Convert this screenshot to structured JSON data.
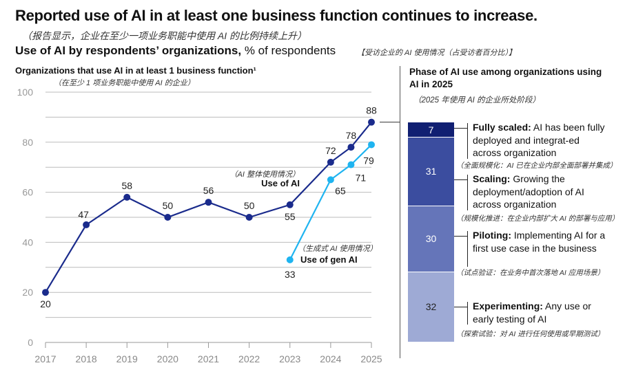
{
  "title": "Reported use of AI in at least one business function continues to increase.",
  "title_cn": "（报告显示，企业在至少一项业务职能中使用 AI 的比例持续上升）",
  "subtitle_bold": "Use of AI by respondents’ organizations,",
  "subtitle_rest": " % of respondents",
  "subtitle_cn": "【受访企业的 AI 使用情况（占受访者百分比）】",
  "chart_data": [
    {
      "type": "line",
      "title": "Organizations that use AI in at least 1 business function¹",
      "title_cn": "（在至少 1 项业务职能中使用 AI 的企业）",
      "ylim": [
        0,
        100
      ],
      "yticks": [
        0,
        20,
        40,
        60,
        80,
        100
      ],
      "grid_step": 10,
      "xticks": [
        "2017",
        "2018",
        "2019",
        "2020",
        "2021",
        "2022",
        "2023",
        "2024",
        "2025"
      ],
      "xlim": [
        2017,
        2025
      ],
      "series": [
        {
          "name": "Use of AI",
          "name_cn": "（AI 整体使用情况）",
          "color": "#1a2b8c",
          "x": [
            2017,
            2018,
            2019,
            2020,
            2021,
            2022,
            2023,
            2024,
            2024.5,
            2025
          ],
          "values": [
            20,
            47,
            58,
            50,
            56,
            50,
            55,
            72,
            78,
            88
          ]
        },
        {
          "name": "Use of gen AI",
          "name_cn": "（生成式 AI 使用情况）",
          "color": "#1fb4f0",
          "x": [
            2023,
            2024,
            2024.5,
            2025
          ],
          "values": [
            33,
            65,
            71,
            79
          ]
        }
      ]
    },
    {
      "type": "bar",
      "stacked": true,
      "title": "Phase of AI use among organizations using AI in 2025",
      "title_cn": "（2025 年使用 AI 的企业所处阶段）",
      "categories": [
        "2025"
      ],
      "segments": [
        {
          "label": "Fully scaled:",
          "desc": " AI has been fully deployed and integrat-ed across organization",
          "cn": "（全面规模化：AI 已在企业内部全面部署并集成）",
          "value": 7,
          "color": "#101f72"
        },
        {
          "label": "Scaling:",
          "desc": " Growing the deployment/adoption of AI across organization",
          "cn": "（规模化推进：在企业内部扩大 AI 的部署与应用）",
          "value": 31,
          "color": "#3b4d9f"
        },
        {
          "label": "Piloting:",
          "desc": " Implementing AI for a first use case in the business",
          "cn": "（试点验证：在业务中首次落地 AI 应用场景）",
          "value": 30,
          "color": "#6575b9"
        },
        {
          "label": "Experimenting:",
          "desc": " Any use or early testing of AI",
          "cn": "（探索试验：对 AI 进行任何使用或早期测试）",
          "value": 32,
          "color": "#9eaad5"
        }
      ]
    }
  ]
}
